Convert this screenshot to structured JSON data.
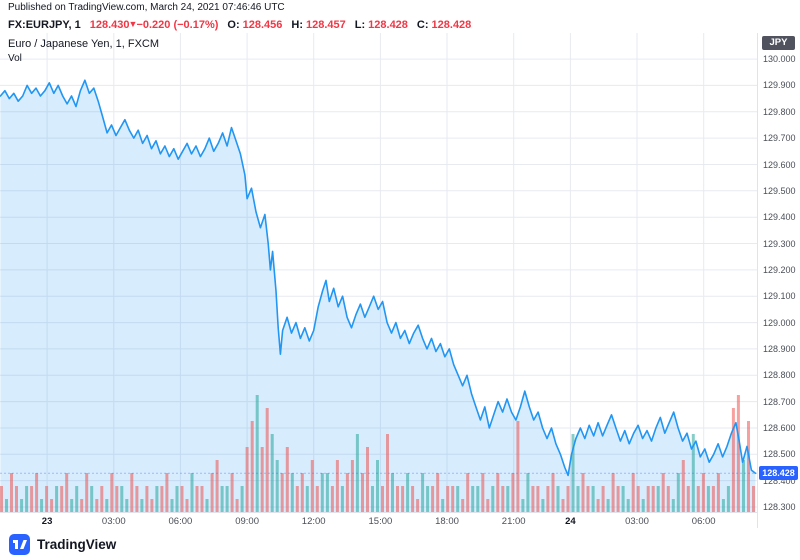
{
  "header": {
    "published": "Published on TradingView.com, March 24, 2021 07:46:46 UTC"
  },
  "symbol_bar": {
    "symbol": "FX:EURJPY, 1",
    "last": "128.430",
    "change_arrow": "▼",
    "change": "−0.220 (−0.17%)",
    "o_label": "O:",
    "o": "128.456",
    "h_label": "H:",
    "h": "128.457",
    "l_label": "L:",
    "l": "128.428",
    "c_label": "C:",
    "c": "128.428"
  },
  "legend": {
    "title": "Euro / Japanese Yen, 1, FXCM",
    "vol_label": "Vol"
  },
  "axis": {
    "currency": "JPY",
    "last_price": "128.428",
    "price_ticks": [
      "130.000",
      "129.900",
      "129.800",
      "129.700",
      "129.600",
      "129.500",
      "129.400",
      "129.300",
      "129.200",
      "129.100",
      "129.000",
      "128.900",
      "128.800",
      "128.700",
      "128.600",
      "128.500",
      "128.400",
      "128.300"
    ],
    "time_ticks": [
      {
        "t": 0,
        "label": "23",
        "major": true
      },
      {
        "t": 3,
        "label": "03:00"
      },
      {
        "t": 6,
        "label": "06:00"
      },
      {
        "t": 9,
        "label": "09:00"
      },
      {
        "t": 12,
        "label": "12:00"
      },
      {
        "t": 15,
        "label": "15:00"
      },
      {
        "t": 18,
        "label": "18:00"
      },
      {
        "t": 21,
        "label": "21:00"
      },
      {
        "t": 23.55,
        "label": "24",
        "major": true
      },
      {
        "t": 26.55,
        "label": "03:00"
      },
      {
        "t": 29.55,
        "label": "06:00"
      }
    ]
  },
  "footer": {
    "brand": "TradingView"
  },
  "colors": {
    "accent_blue": "#2962ff",
    "line_blue": "#2196f3",
    "fill_blue": "rgba(33,150,243,0.18)",
    "down_red": "#f23645",
    "vol_up": "rgba(38,166,154,0.55)",
    "vol_down": "rgba(239,83,80,0.55)",
    "grid": "#e7eaf0",
    "axis_text": "#4a4e57",
    "dark_text": "#131722",
    "badge_dark": "#50535e"
  },
  "chart_data": {
    "type": "area",
    "title": "Euro / Japanese Yen, 1, FXCM",
    "symbol": "FX:EURJPY",
    "interval": "1",
    "exchange": "FXCM",
    "x_unit": "hours since Mar 23 00:00 UTC",
    "x_range": [
      -2.12,
      31.95
    ],
    "y_range": [
      128.281,
      130.099
    ],
    "ylabel": "JPY",
    "grid": true,
    "last_price": 128.428,
    "ohlc": {
      "open": 128.456,
      "high": 128.457,
      "low": 128.428,
      "close": 128.428
    },
    "change": -0.22,
    "change_pct": -0.17,
    "price": {
      "points": [
        [
          -2.1,
          129.86
        ],
        [
          -1.9,
          129.88
        ],
        [
          -1.7,
          129.85
        ],
        [
          -1.5,
          129.87
        ],
        [
          -1.3,
          129.84
        ],
        [
          -1.1,
          129.86
        ],
        [
          -0.9,
          129.9
        ],
        [
          -0.7,
          129.87
        ],
        [
          -0.5,
          129.89
        ],
        [
          -0.3,
          129.86
        ],
        [
          -0.1,
          129.88
        ],
        [
          0.1,
          129.91
        ],
        [
          0.3,
          129.87
        ],
        [
          0.5,
          129.9
        ],
        [
          0.7,
          129.86
        ],
        [
          0.9,
          129.83
        ],
        [
          1.1,
          129.86
        ],
        [
          1.3,
          129.82
        ],
        [
          1.5,
          129.88
        ],
        [
          1.7,
          129.92
        ],
        [
          1.9,
          129.87
        ],
        [
          2.1,
          129.89
        ],
        [
          2.3,
          129.84
        ],
        [
          2.5,
          129.78
        ],
        [
          2.7,
          129.72
        ],
        [
          2.9,
          129.75
        ],
        [
          3.1,
          129.71
        ],
        [
          3.3,
          129.74
        ],
        [
          3.5,
          129.77
        ],
        [
          3.7,
          129.73
        ],
        [
          3.9,
          129.7
        ],
        [
          4.1,
          129.73
        ],
        [
          4.3,
          129.68
        ],
        [
          4.5,
          129.71
        ],
        [
          4.7,
          129.66
        ],
        [
          4.9,
          129.69
        ],
        [
          5.1,
          129.64
        ],
        [
          5.3,
          129.67
        ],
        [
          5.5,
          129.63
        ],
        [
          5.7,
          129.66
        ],
        [
          5.9,
          129.62
        ],
        [
          6.1,
          129.65
        ],
        [
          6.3,
          129.68
        ],
        [
          6.5,
          129.64
        ],
        [
          6.7,
          129.67
        ],
        [
          6.9,
          129.63
        ],
        [
          7.1,
          129.66
        ],
        [
          7.3,
          129.7
        ],
        [
          7.5,
          129.65
        ],
        [
          7.7,
          129.68
        ],
        [
          7.9,
          129.72
        ],
        [
          8.1,
          129.67
        ],
        [
          8.3,
          129.74
        ],
        [
          8.5,
          129.69
        ],
        [
          8.7,
          129.64
        ],
        [
          8.9,
          129.56
        ],
        [
          9.0,
          129.47
        ],
        [
          9.2,
          129.51
        ],
        [
          9.4,
          129.42
        ],
        [
          9.6,
          129.36
        ],
        [
          9.8,
          129.41
        ],
        [
          9.95,
          129.3
        ],
        [
          10.05,
          129.2
        ],
        [
          10.15,
          129.27
        ],
        [
          10.3,
          129.12
        ],
        [
          10.4,
          128.98
        ],
        [
          10.5,
          128.88
        ],
        [
          10.6,
          128.97
        ],
        [
          10.8,
          129.02
        ],
        [
          11.0,
          128.96
        ],
        [
          11.2,
          129.0
        ],
        [
          11.4,
          128.94
        ],
        [
          11.6,
          128.98
        ],
        [
          11.8,
          128.93
        ],
        [
          12.0,
          128.97
        ],
        [
          12.2,
          129.06
        ],
        [
          12.4,
          129.12
        ],
        [
          12.55,
          129.16
        ],
        [
          12.7,
          129.08
        ],
        [
          12.9,
          129.13
        ],
        [
          13.1,
          129.06
        ],
        [
          13.3,
          129.1
        ],
        [
          13.5,
          129.02
        ],
        [
          13.7,
          128.98
        ],
        [
          13.9,
          129.03
        ],
        [
          14.1,
          129.07
        ],
        [
          14.3,
          129.02
        ],
        [
          14.5,
          129.06
        ],
        [
          14.7,
          129.1
        ],
        [
          14.9,
          129.05
        ],
        [
          15.1,
          129.08
        ],
        [
          15.3,
          129.0
        ],
        [
          15.5,
          128.96
        ],
        [
          15.7,
          129.0
        ],
        [
          15.9,
          128.94
        ],
        [
          16.1,
          128.97
        ],
        [
          16.3,
          128.92
        ],
        [
          16.5,
          128.96
        ],
        [
          16.7,
          128.99
        ],
        [
          16.9,
          128.94
        ],
        [
          17.1,
          128.9
        ],
        [
          17.3,
          128.94
        ],
        [
          17.5,
          128.89
        ],
        [
          17.7,
          128.92
        ],
        [
          17.9,
          128.87
        ],
        [
          18.1,
          128.9
        ],
        [
          18.3,
          128.84
        ],
        [
          18.5,
          128.8
        ],
        [
          18.7,
          128.76
        ],
        [
          18.9,
          128.8
        ],
        [
          19.1,
          128.73
        ],
        [
          19.3,
          128.68
        ],
        [
          19.5,
          128.63
        ],
        [
          19.7,
          128.68
        ],
        [
          19.9,
          128.6
        ],
        [
          20.1,
          128.65
        ],
        [
          20.3,
          128.7
        ],
        [
          20.5,
          128.66
        ],
        [
          20.7,
          128.71
        ],
        [
          20.9,
          128.66
        ],
        [
          21.1,
          128.63
        ],
        [
          21.3,
          128.68
        ],
        [
          21.5,
          128.74
        ],
        [
          21.7,
          128.68
        ],
        [
          21.9,
          128.63
        ],
        [
          22.1,
          128.66
        ],
        [
          22.3,
          128.6
        ],
        [
          22.5,
          128.56
        ],
        [
          22.7,
          128.6
        ],
        [
          22.9,
          128.54
        ],
        [
          23.1,
          128.5
        ],
        [
          23.3,
          128.45
        ],
        [
          23.45,
          128.42
        ],
        [
          23.6,
          128.5
        ],
        [
          23.8,
          128.56
        ],
        [
          24.0,
          128.6
        ],
        [
          24.2,
          128.56
        ],
        [
          24.4,
          128.61
        ],
        [
          24.6,
          128.57
        ],
        [
          24.8,
          128.62
        ],
        [
          25.0,
          128.57
        ],
        [
          25.2,
          128.61
        ],
        [
          25.4,
          128.65
        ],
        [
          25.6,
          128.6
        ],
        [
          25.8,
          128.55
        ],
        [
          26.0,
          128.59
        ],
        [
          26.2,
          128.54
        ],
        [
          26.4,
          128.58
        ],
        [
          26.6,
          128.61
        ],
        [
          26.8,
          128.56
        ],
        [
          27.0,
          128.59
        ],
        [
          27.2,
          128.55
        ],
        [
          27.4,
          128.6
        ],
        [
          27.6,
          128.64
        ],
        [
          27.8,
          128.58
        ],
        [
          28.0,
          128.62
        ],
        [
          28.2,
          128.66
        ],
        [
          28.4,
          128.6
        ],
        [
          28.6,
          128.55
        ],
        [
          28.8,
          128.58
        ],
        [
          29.0,
          128.52
        ],
        [
          29.2,
          128.55
        ],
        [
          29.4,
          128.49
        ],
        [
          29.6,
          128.52
        ],
        [
          29.8,
          128.47
        ],
        [
          30.0,
          128.5
        ],
        [
          30.2,
          128.54
        ],
        [
          30.4,
          128.49
        ],
        [
          30.6,
          128.53
        ],
        [
          30.8,
          128.58
        ],
        [
          31.0,
          128.62
        ],
        [
          31.15,
          128.55
        ],
        [
          31.3,
          128.47
        ],
        [
          31.5,
          128.53
        ],
        [
          31.7,
          128.44
        ],
        [
          31.88,
          128.428
        ]
      ]
    },
    "volume": {
      "note": "relative bar heights 0-9 left to right; colors r=down, g=up",
      "heights": "2132122312122312132121322132121223122132213422312579586435323242332423463524263223213223122213223123223713221232126232212132213212223213426232231289472",
      "colors": "rgrrggrrgrrgrrggrrgrrgrrggrrgrrgrrggrrgrrgrrggrrgrrgrrggrrgrrgrrggrrgrrgrrggrrgrrgrrggrrgrrgrrggrrgrrgrrggrrgrrgrrggrrgrrgrrggrrgrrgrrggrrgrrgrrggrrgr"
    }
  }
}
